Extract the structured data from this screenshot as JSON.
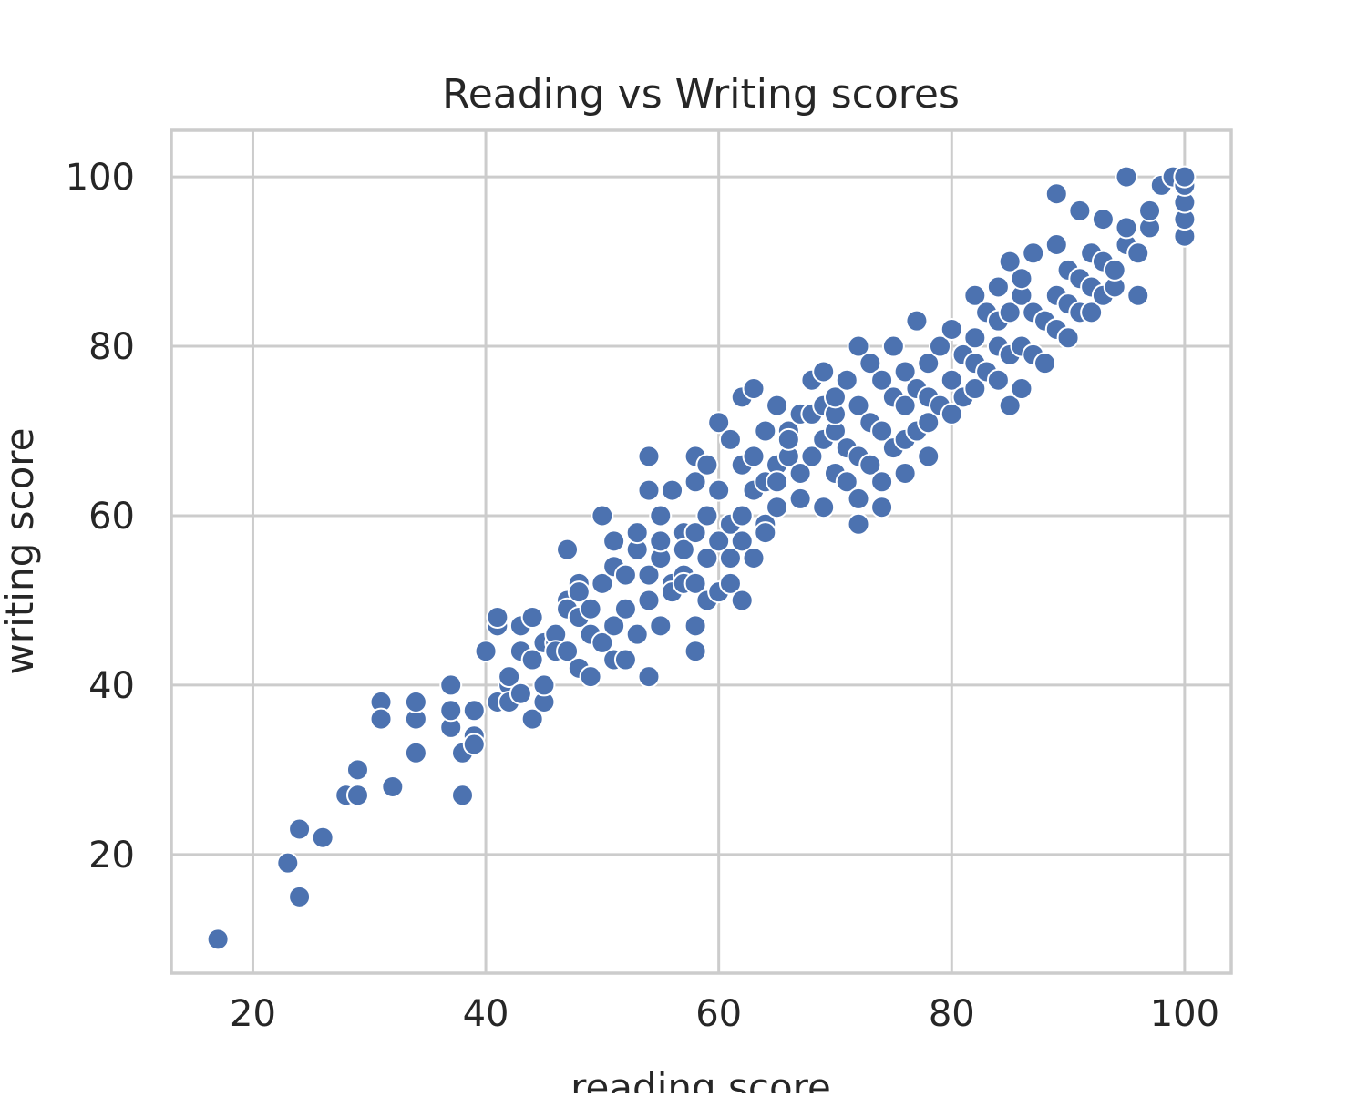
{
  "chart_data": {
    "type": "scatter",
    "title": "Reading vs Writing scores",
    "xlabel": "reading score",
    "ylabel": "writing score",
    "xlim": [
      13,
      104
    ],
    "ylim": [
      6,
      105.5
    ],
    "xticks": [
      20,
      40,
      60,
      80,
      100
    ],
    "yticks": [
      20,
      40,
      60,
      80,
      100
    ],
    "xtick_labels": [
      "20",
      "40",
      "60",
      "80",
      "100"
    ],
    "ytick_labels": [
      "20",
      "40",
      "60",
      "80",
      "100"
    ],
    "grid": true,
    "point_color": "#4c72b0",
    "point_edge_color": "#ffffff",
    "series": [
      {
        "x": [
          17,
          23,
          24,
          24,
          26,
          28,
          29,
          29,
          31,
          31,
          32,
          34,
          34,
          34,
          37,
          37,
          37,
          38,
          38,
          39,
          39,
          39,
          40,
          41,
          41,
          41,
          42,
          42,
          42,
          43,
          43,
          43,
          44,
          44,
          44,
          45,
          45,
          45,
          46,
          46,
          46,
          47,
          47,
          47,
          47,
          48,
          48,
          48,
          48,
          49,
          49,
          49,
          50,
          50,
          50,
          51,
          51,
          51,
          51,
          52,
          52,
          52,
          53,
          53,
          53,
          54,
          54,
          54,
          54,
          54,
          55,
          55,
          55,
          55,
          56,
          56,
          56,
          57,
          57,
          57,
          57,
          58,
          58,
          58,
          58,
          58,
          58,
          59,
          59,
          59,
          59,
          60,
          60,
          60,
          60,
          61,
          61,
          61,
          61,
          62,
          62,
          62,
          62,
          62,
          63,
          63,
          63,
          63,
          64,
          64,
          64,
          64,
          65,
          65,
          65,
          65,
          66,
          66,
          66,
          67,
          67,
          67,
          68,
          68,
          68,
          69,
          69,
          69,
          69,
          70,
          70,
          70,
          70,
          71,
          71,
          71,
          72,
          72,
          72,
          72,
          72,
          73,
          73,
          73,
          74,
          74,
          74,
          74,
          75,
          75,
          75,
          76,
          76,
          76,
          76,
          77,
          77,
          77,
          78,
          78,
          78,
          78,
          79,
          79,
          80,
          80,
          80,
          81,
          81,
          82,
          82,
          82,
          82,
          83,
          83,
          84,
          84,
          84,
          84,
          85,
          85,
          85,
          85,
          86,
          86,
          86,
          86,
          87,
          87,
          87,
          88,
          88,
          89,
          89,
          89,
          89,
          90,
          90,
          90,
          91,
          91,
          91,
          92,
          92,
          92,
          93,
          93,
          93,
          94,
          94,
          95,
          95,
          95,
          96,
          96,
          97,
          97,
          98,
          99,
          100,
          100,
          100,
          100,
          100
        ],
        "y": [
          10,
          19,
          15,
          23,
          22,
          27,
          27,
          30,
          38,
          36,
          28,
          36,
          32,
          38,
          35,
          37,
          40,
          27,
          32,
          37,
          34,
          33,
          44,
          38,
          47,
          48,
          40,
          41,
          38,
          44,
          39,
          47,
          43,
          36,
          48,
          38,
          45,
          40,
          45,
          46,
          44,
          50,
          49,
          44,
          56,
          48,
          42,
          52,
          51,
          41,
          46,
          49,
          60,
          52,
          45,
          43,
          54,
          47,
          57,
          49,
          43,
          53,
          46,
          56,
          58,
          67,
          63,
          41,
          50,
          53,
          55,
          57,
          60,
          47,
          52,
          51,
          63,
          58,
          53,
          52,
          56,
          44,
          47,
          52,
          58,
          64,
          67,
          50,
          55,
          60,
          66,
          51,
          57,
          63,
          71,
          55,
          59,
          52,
          69,
          50,
          60,
          66,
          74,
          57,
          63,
          67,
          75,
          55,
          59,
          64,
          70,
          58,
          61,
          66,
          73,
          64,
          67,
          70,
          69,
          72,
          65,
          62,
          67,
          72,
          76,
          61,
          69,
          73,
          77,
          65,
          70,
          72,
          74,
          64,
          68,
          76,
          59,
          62,
          67,
          73,
          80,
          66,
          71,
          78,
          61,
          64,
          70,
          76,
          68,
          74,
          80,
          65,
          69,
          73,
          77,
          70,
          75,
          83,
          67,
          71,
          74,
          78,
          73,
          80,
          72,
          76,
          82,
          74,
          79,
          75,
          78,
          81,
          86,
          77,
          84,
          76,
          80,
          83,
          87,
          73,
          79,
          84,
          90,
          75,
          80,
          86,
          88,
          79,
          84,
          91,
          78,
          83,
          82,
          86,
          92,
          98,
          81,
          85,
          89,
          84,
          88,
          96,
          84,
          87,
          91,
          86,
          90,
          95,
          87,
          89,
          92,
          94,
          100,
          86,
          91,
          94,
          96,
          99,
          100,
          93,
          95,
          97,
          99,
          100
        ]
      }
    ]
  }
}
